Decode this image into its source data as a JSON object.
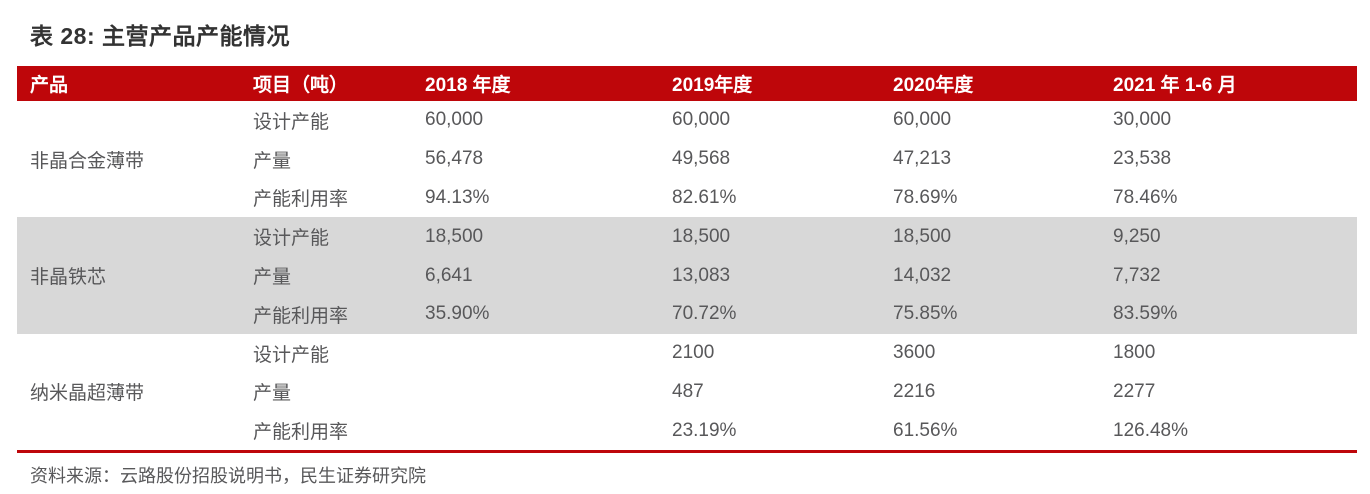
{
  "title": "表 28: 主营产品产能情况",
  "colors": {
    "accent_red": "#be060a",
    "band_gray": "#d8d8d8",
    "body_text": "#58585a"
  },
  "table": {
    "columns": [
      "产品",
      "项目（吨）",
      "2018 年度",
      "2019年度",
      "2020年度",
      "2021 年 1-6 月"
    ],
    "groups": [
      {
        "product": "非晶合金薄带",
        "rows": [
          {
            "metric": "设计产能",
            "values": [
              "60,000",
              "60,000",
              "60,000",
              "30,000"
            ]
          },
          {
            "metric": "产量",
            "values": [
              "56,478",
              "49,568",
              "47,213",
              "23,538"
            ]
          },
          {
            "metric": "产能利用率",
            "values": [
              "94.13%",
              "82.61%",
              "78.69%",
              "78.46%"
            ]
          }
        ]
      },
      {
        "product": "非晶铁芯",
        "rows": [
          {
            "metric": "设计产能",
            "values": [
              "18,500",
              "18,500",
              "18,500",
              "9,250"
            ]
          },
          {
            "metric": "产量",
            "values": [
              "6,641",
              "13,083",
              "14,032",
              "7,732"
            ]
          },
          {
            "metric": "产能利用率",
            "values": [
              "35.90%",
              "70.72%",
              "75.85%",
              "83.59%"
            ]
          }
        ]
      },
      {
        "product": "纳米晶超薄带",
        "rows": [
          {
            "metric": "设计产能",
            "values": [
              "",
              "2100",
              "3600",
              "1800"
            ]
          },
          {
            "metric": "产量",
            "values": [
              "",
              "487",
              "2216",
              "2277"
            ]
          },
          {
            "metric": "产能利用率",
            "values": [
              "",
              "23.19%",
              "61.56%",
              "126.48%"
            ]
          }
        ]
      }
    ]
  },
  "source": "资料来源：云路股份招股说明书，民生证券研究院"
}
